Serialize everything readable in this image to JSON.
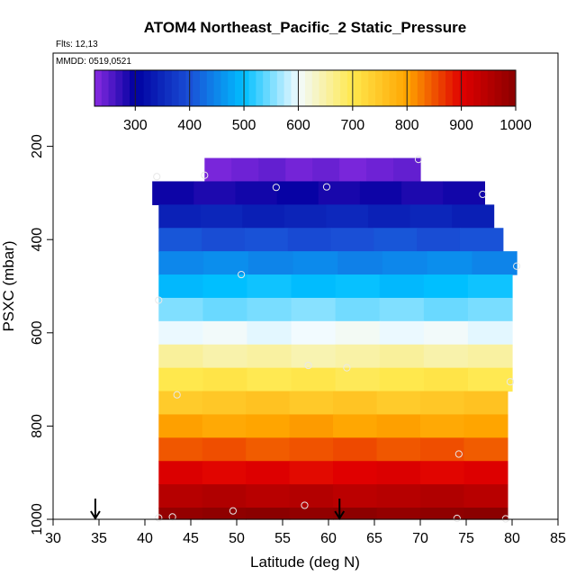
{
  "chart_data": {
    "type": "heatmap",
    "title": "ATOM4 Northeast_Pacific_2 Static_Pressure",
    "flights_label": "Flts: 12,13",
    "mmdd_label": "MMDD: 0519,0521",
    "xlabel": "Latitude (deg N)",
    "ylabel": "PSXC (mbar)",
    "xlim": [
      30,
      85
    ],
    "ylim": [
      1000,
      0
    ],
    "x_ticks": [
      30,
      35,
      40,
      45,
      50,
      55,
      60,
      65,
      70,
      75,
      80,
      85
    ],
    "y_ticks": [
      200,
      400,
      600,
      800,
      1000
    ],
    "colorbar": {
      "range": [
        225,
        1000
      ],
      "ticks": [
        300,
        400,
        500,
        600,
        700,
        800,
        900,
        1000
      ],
      "stops": [
        {
          "v": 225,
          "color": "#8a2be2"
        },
        {
          "v": 300,
          "color": "#0000a0"
        },
        {
          "v": 400,
          "color": "#1a4fd6"
        },
        {
          "v": 500,
          "color": "#00bfff"
        },
        {
          "v": 600,
          "color": "#f2fbff"
        },
        {
          "v": 700,
          "color": "#ffe84d"
        },
        {
          "v": 800,
          "color": "#ffa500"
        },
        {
          "v": 900,
          "color": "#e00000"
        },
        {
          "v": 1000,
          "color": "#8b0000"
        }
      ]
    },
    "bands": [
      {
        "p_top": 225,
        "p_bot": 275,
        "lat_min": 46.5,
        "lat_max": 70.0,
        "value": 240
      },
      {
        "p_top": 275,
        "p_bot": 325,
        "lat_min": 40.8,
        "lat_max": 77.0,
        "value": 290
      },
      {
        "p_top": 325,
        "p_bot": 375,
        "lat_min": 41.5,
        "lat_max": 78.0,
        "value": 345
      },
      {
        "p_top": 375,
        "p_bot": 425,
        "lat_min": 41.5,
        "lat_max": 79.0,
        "value": 400
      },
      {
        "p_top": 425,
        "p_bot": 475,
        "lat_min": 41.5,
        "lat_max": 80.5,
        "value": 450
      },
      {
        "p_top": 475,
        "p_bot": 525,
        "lat_min": 41.5,
        "lat_max": 80.0,
        "value": 500
      },
      {
        "p_top": 525,
        "p_bot": 575,
        "lat_min": 41.5,
        "lat_max": 80.0,
        "value": 550
      },
      {
        "p_top": 575,
        "p_bot": 625,
        "lat_min": 41.5,
        "lat_max": 80.0,
        "value": 600
      },
      {
        "p_top": 625,
        "p_bot": 675,
        "lat_min": 41.5,
        "lat_max": 80.0,
        "value": 650
      },
      {
        "p_top": 675,
        "p_bot": 725,
        "lat_min": 41.5,
        "lat_max": 80.0,
        "value": 700
      },
      {
        "p_top": 725,
        "p_bot": 775,
        "lat_min": 41.5,
        "lat_max": 79.5,
        "value": 750
      },
      {
        "p_top": 775,
        "p_bot": 825,
        "lat_min": 41.5,
        "lat_max": 79.5,
        "value": 800
      },
      {
        "p_top": 825,
        "p_bot": 875,
        "lat_min": 41.5,
        "lat_max": 79.5,
        "value": 850
      },
      {
        "p_top": 875,
        "p_bot": 925,
        "lat_min": 41.5,
        "lat_max": 79.5,
        "value": 900
      },
      {
        "p_top": 925,
        "p_bot": 975,
        "lat_min": 41.5,
        "lat_max": 79.5,
        "value": 950
      },
      {
        "p_top": 975,
        "p_bot": 1000,
        "lat_min": 41.5,
        "lat_max": 79.5,
        "value": 995
      }
    ],
    "points": [
      {
        "lat": 41.3,
        "p": 265
      },
      {
        "lat": 46.5,
        "p": 262
      },
      {
        "lat": 69.8,
        "p": 228
      },
      {
        "lat": 54.3,
        "p": 288
      },
      {
        "lat": 59.8,
        "p": 287
      },
      {
        "lat": 76.8,
        "p": 303
      },
      {
        "lat": 80.5,
        "p": 457
      },
      {
        "lat": 50.5,
        "p": 475
      },
      {
        "lat": 41.5,
        "p": 530
      },
      {
        "lat": 57.8,
        "p": 670
      },
      {
        "lat": 62.0,
        "p": 675
      },
      {
        "lat": 79.8,
        "p": 705
      },
      {
        "lat": 43.5,
        "p": 733
      },
      {
        "lat": 74.2,
        "p": 860
      },
      {
        "lat": 57.4,
        "p": 970
      },
      {
        "lat": 49.6,
        "p": 982
      },
      {
        "lat": 41.5,
        "p": 997
      },
      {
        "lat": 43.0,
        "p": 995
      },
      {
        "lat": 74.0,
        "p": 998
      },
      {
        "lat": 79.3,
        "p": 999
      }
    ],
    "arrows": [
      34.6,
      61.2
    ]
  }
}
